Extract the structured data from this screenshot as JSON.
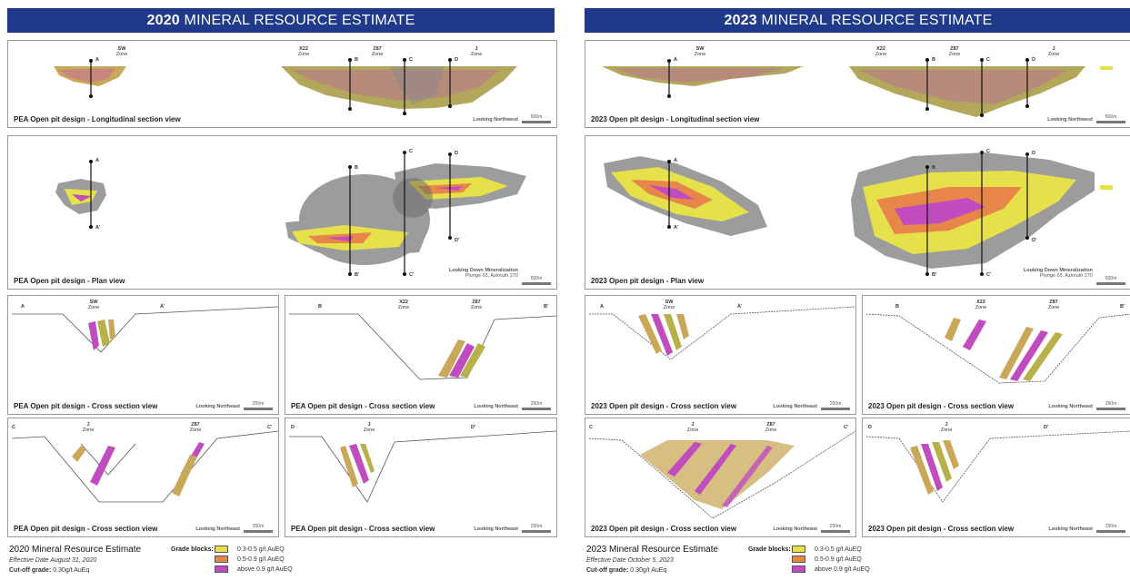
{
  "colors": {
    "banner": "#1f3a8a",
    "low": "#e6e04a",
    "mid": "#e8864a",
    "high": "#c04cc0",
    "pit": "#9c9c9c"
  },
  "left": {
    "banner_year": "2020",
    "banner_rest": " MINERAL RESOURCE ESTIMATE",
    "long": {
      "title": "PEA Open pit design - Longitudinal section view",
      "looking": "Looking Northwest",
      "scale": "500m",
      "zones": [
        {
          "name": "SW",
          "sub": "Zone"
        },
        {
          "name": "X22",
          "sub": "Zone"
        },
        {
          "name": "Z87",
          "sub": "Zone"
        },
        {
          "name": "J",
          "sub": "Zone"
        }
      ]
    },
    "plan": {
      "title": "PEA Open pit design - Plan view",
      "looking": "Looking Down Mineralization",
      "plunge": "Plunge 65, Azimuth 270",
      "scale": "500m"
    },
    "cross": [
      {
        "title": "PEA Open pit design - Cross section view",
        "looking": "Looking Northeast",
        "scale": "250m",
        "a": "A",
        "b": "A'",
        "zones": [
          {
            "name": "SW",
            "sub": "Zone"
          }
        ]
      },
      {
        "title": "PEA Open pit design - Cross section view",
        "looking": "Looking Northeast",
        "scale": "250m",
        "a": "B",
        "b": "B'",
        "zones": [
          {
            "name": "X22",
            "sub": "Zone"
          },
          {
            "name": "Z87",
            "sub": "Zone"
          }
        ]
      },
      {
        "title": "PEA Open pit design - Cross section view",
        "looking": "Looking Northeast",
        "scale": "250m",
        "a": "C",
        "b": "C'",
        "zones": [
          {
            "name": "J",
            "sub": "Zone"
          },
          {
            "name": "Z87",
            "sub": "Zone"
          }
        ]
      },
      {
        "title": "PEA Open pit design - Cross section view",
        "looking": "Looking Northeast",
        "scale": "250m",
        "a": "D",
        "b": "D'",
        "zones": [
          {
            "name": "J",
            "sub": "Zone"
          }
        ]
      }
    ],
    "legend": {
      "title": "2020 Mineral Resource Estimate",
      "date": "Effective Date August 31, 2020",
      "cut_label": "Cut-off grade:",
      "cut_value": " 0.30g/t AuEq"
    }
  },
  "right": {
    "banner_year": "2023",
    "banner_rest": " MINERAL RESOURCE ESTIMATE",
    "long": {
      "title": "2023 Open pit design - Longitudinal section view",
      "looking": "Looking Northwest",
      "scale": "500m",
      "zones": [
        {
          "name": "SW",
          "sub": "Zone"
        },
        {
          "name": "X22",
          "sub": "Zone"
        },
        {
          "name": "Z87",
          "sub": "Zone"
        },
        {
          "name": "J",
          "sub": "Zone"
        }
      ]
    },
    "plan": {
      "title": "2023 Open pit design - Plan view",
      "looking": "Looking Down Mineralization",
      "plunge": "Plunge 65, Azimuth 270",
      "scale": "500m"
    },
    "cross": [
      {
        "title": "2023 Open pit design - Cross section view",
        "looking": "Looking Northeast",
        "scale": "250m",
        "a": "A",
        "b": "A'",
        "zones": [
          {
            "name": "SW",
            "sub": "Zone"
          }
        ]
      },
      {
        "title": "2023 Open pit design - Cross section view",
        "looking": "Looking Northeast",
        "scale": "250m",
        "a": "B",
        "b": "B'",
        "zones": [
          {
            "name": "X22",
            "sub": "Zone"
          },
          {
            "name": "Z87",
            "sub": "Zone"
          }
        ]
      },
      {
        "title": "2023 Open pit design - Cross section view",
        "looking": "Looking Northeast",
        "scale": "250m",
        "a": "C",
        "b": "C'",
        "zones": [
          {
            "name": "J",
            "sub": "Zone"
          },
          {
            "name": "Z87",
            "sub": "Zone"
          }
        ]
      },
      {
        "title": "2023 Open pit design - Cross section view",
        "looking": "Looking Northeast",
        "scale": "250m",
        "a": "D",
        "b": "D'",
        "zones": [
          {
            "name": "J",
            "sub": "Zone"
          }
        ]
      }
    ],
    "legend": {
      "title": "2023 Mineral Resource Estimate",
      "date": "Effective Date October 5, 2023",
      "cut_label": "Cut-off grade:",
      "cut_value": " 0.30g/t AuEq"
    }
  },
  "legend_common": {
    "grade_label": "Grade blocks:",
    "items": [
      "0.3-0.5 g/t AuEQ",
      "0.5-0.9 g/t AuEQ",
      "above 0.9 g/t AuEQ"
    ]
  },
  "section_points": {
    "A": "A",
    "A2": "A'",
    "B": "B",
    "B2": "B'",
    "C": "C",
    "C2": "C'",
    "D": "D",
    "D2": "D'"
  }
}
